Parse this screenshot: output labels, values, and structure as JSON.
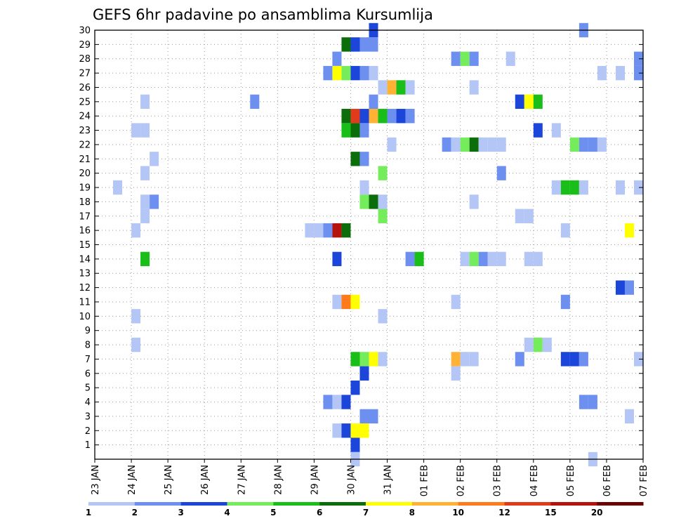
{
  "chart_data": {
    "type": "heatmap",
    "title": "GEFS 6hr padavine po ansamblima Kursumlija",
    "xlabel": "",
    "ylabel": "",
    "x_ticks": [
      "23 JAN",
      "24 JAN",
      "25 JAN",
      "26 JAN",
      "27 JAN",
      "28 JAN",
      "29 JAN",
      "30 JAN",
      "31 JAN",
      "01 FEB",
      "02 FEB",
      "03 FEB",
      "04 FEB",
      "05 FEB",
      "06 FEB",
      "07 FEB"
    ],
    "y_ticks": [
      1,
      2,
      3,
      4,
      5,
      6,
      7,
      8,
      9,
      10,
      11,
      12,
      13,
      14,
      15,
      16,
      17,
      18,
      19,
      20,
      21,
      22,
      23,
      24,
      25,
      26,
      27,
      28,
      29,
      30
    ],
    "xlim_steps": [
      0,
      60
    ],
    "ylim": [
      0,
      30
    ],
    "grid": true,
    "time_step": "6hr, x index counted in 6-hour steps from 23 JAN",
    "legend": {
      "position": "bottom",
      "bins": [
        "#b3c6f5",
        "#6c8ff0",
        "#1c46d9",
        "#74ec5c",
        "#19be19",
        "#0b6e0b",
        "#ffff00",
        "#ffb233",
        "#ff7a1a",
        "#e23b1c",
        "#b5120e",
        "#6b0000"
      ],
      "labels": [
        "1",
        "2",
        "3",
        "4",
        "5",
        "6",
        "7",
        "8",
        "10",
        "12",
        "15",
        "20"
      ]
    },
    "colors": [
      "#b3c6f5",
      "#6c8ff0",
      "#1c46d9",
      "#74ec5c",
      "#19be19",
      "#0b6e0b",
      "#ffff00",
      "#ffb233",
      "#ff7a1a",
      "#e23b1c",
      "#b5120e",
      "#6b0000"
    ],
    "cells": [
      {
        "member": 30,
        "step": 30,
        "class": 2
      },
      {
        "member": 30,
        "step": 53,
        "class": 1
      },
      {
        "member": 29,
        "step": 27,
        "class": 5
      },
      {
        "member": 29,
        "step": 28,
        "class": 2
      },
      {
        "member": 29,
        "step": 29,
        "class": 1
      },
      {
        "member": 29,
        "step": 30,
        "class": 1
      },
      {
        "member": 28,
        "step": 26,
        "class": 1
      },
      {
        "member": 28,
        "step": 39,
        "class": 1
      },
      {
        "member": 28,
        "step": 40,
        "class": 3
      },
      {
        "member": 28,
        "step": 41,
        "class": 1
      },
      {
        "member": 28,
        "step": 45,
        "class": 0
      },
      {
        "member": 28,
        "step": 59,
        "class": 1
      },
      {
        "member": 27,
        "step": 25,
        "class": 1
      },
      {
        "member": 27,
        "step": 26,
        "class": 6
      },
      {
        "member": 27,
        "step": 27,
        "class": 3
      },
      {
        "member": 27,
        "step": 28,
        "class": 2
      },
      {
        "member": 27,
        "step": 29,
        "class": 1
      },
      {
        "member": 27,
        "step": 30,
        "class": 0
      },
      {
        "member": 27,
        "step": 55,
        "class": 0
      },
      {
        "member": 27,
        "step": 57,
        "class": 0
      },
      {
        "member": 27,
        "step": 59,
        "class": 1
      },
      {
        "member": 26,
        "step": 31,
        "class": 0
      },
      {
        "member": 26,
        "step": 32,
        "class": 7
      },
      {
        "member": 26,
        "step": 33,
        "class": 4
      },
      {
        "member": 26,
        "step": 34,
        "class": 0
      },
      {
        "member": 26,
        "step": 41,
        "class": 0
      },
      {
        "member": 25,
        "step": 5,
        "class": 0
      },
      {
        "member": 25,
        "step": 17,
        "class": 1
      },
      {
        "member": 25,
        "step": 30,
        "class": 1
      },
      {
        "member": 25,
        "step": 46,
        "class": 2
      },
      {
        "member": 25,
        "step": 47,
        "class": 6
      },
      {
        "member": 25,
        "step": 48,
        "class": 4
      },
      {
        "member": 24,
        "step": 27,
        "class": 5
      },
      {
        "member": 24,
        "step": 28,
        "class": 9
      },
      {
        "member": 24,
        "step": 29,
        "class": 2
      },
      {
        "member": 24,
        "step": 30,
        "class": 7
      },
      {
        "member": 24,
        "step": 31,
        "class": 4
      },
      {
        "member": 24,
        "step": 32,
        "class": 1
      },
      {
        "member": 24,
        "step": 33,
        "class": 2
      },
      {
        "member": 24,
        "step": 34,
        "class": 1
      },
      {
        "member": 23,
        "step": 4,
        "class": 0
      },
      {
        "member": 23,
        "step": 5,
        "class": 0
      },
      {
        "member": 23,
        "step": 27,
        "class": 4
      },
      {
        "member": 23,
        "step": 28,
        "class": 5
      },
      {
        "member": 23,
        "step": 29,
        "class": 1
      },
      {
        "member": 23,
        "step": 48,
        "class": 2
      },
      {
        "member": 23,
        "step": 50,
        "class": 0
      },
      {
        "member": 22,
        "step": 32,
        "class": 0
      },
      {
        "member": 22,
        "step": 38,
        "class": 1
      },
      {
        "member": 22,
        "step": 39,
        "class": 0
      },
      {
        "member": 22,
        "step": 40,
        "class": 3
      },
      {
        "member": 22,
        "step": 41,
        "class": 5
      },
      {
        "member": 22,
        "step": 42,
        "class": 0
      },
      {
        "member": 22,
        "step": 43,
        "class": 0
      },
      {
        "member": 22,
        "step": 44,
        "class": 0
      },
      {
        "member": 22,
        "step": 52,
        "class": 3
      },
      {
        "member": 22,
        "step": 53,
        "class": 1
      },
      {
        "member": 22,
        "step": 54,
        "class": 1
      },
      {
        "member": 22,
        "step": 55,
        "class": 0
      },
      {
        "member": 21,
        "step": 6,
        "class": 0
      },
      {
        "member": 21,
        "step": 28,
        "class": 5
      },
      {
        "member": 21,
        "step": 29,
        "class": 1
      },
      {
        "member": 20,
        "step": 5,
        "class": 0
      },
      {
        "member": 20,
        "step": 31,
        "class": 3
      },
      {
        "member": 20,
        "step": 44,
        "class": 1
      },
      {
        "member": 19,
        "step": 2,
        "class": 0
      },
      {
        "member": 19,
        "step": 29,
        "class": 0
      },
      {
        "member": 19,
        "step": 50,
        "class": 0
      },
      {
        "member": 19,
        "step": 51,
        "class": 4
      },
      {
        "member": 19,
        "step": 52,
        "class": 4
      },
      {
        "member": 19,
        "step": 53,
        "class": 0
      },
      {
        "member": 19,
        "step": 57,
        "class": 0
      },
      {
        "member": 19,
        "step": 59,
        "class": 0
      },
      {
        "member": 18,
        "step": 5,
        "class": 0
      },
      {
        "member": 18,
        "step": 6,
        "class": 1
      },
      {
        "member": 18,
        "step": 29,
        "class": 3
      },
      {
        "member": 18,
        "step": 30,
        "class": 5
      },
      {
        "member": 18,
        "step": 31,
        "class": 0
      },
      {
        "member": 18,
        "step": 41,
        "class": 0
      },
      {
        "member": 17,
        "step": 5,
        "class": 0
      },
      {
        "member": 17,
        "step": 31,
        "class": 3
      },
      {
        "member": 17,
        "step": 46,
        "class": 0
      },
      {
        "member": 17,
        "step": 47,
        "class": 0
      },
      {
        "member": 16,
        "step": 4,
        "class": 0
      },
      {
        "member": 16,
        "step": 23,
        "class": 0
      },
      {
        "member": 16,
        "step": 24,
        "class": 0
      },
      {
        "member": 16,
        "step": 25,
        "class": 1
      },
      {
        "member": 16,
        "step": 26,
        "class": 10
      },
      {
        "member": 16,
        "step": 27,
        "class": 5
      },
      {
        "member": 16,
        "step": 51,
        "class": 0
      },
      {
        "member": 16,
        "step": 58,
        "class": 6
      },
      {
        "member": 14,
        "step": 5,
        "class": 4
      },
      {
        "member": 14,
        "step": 26,
        "class": 2
      },
      {
        "member": 14,
        "step": 34,
        "class": 1
      },
      {
        "member": 14,
        "step": 35,
        "class": 4
      },
      {
        "member": 14,
        "step": 40,
        "class": 0
      },
      {
        "member": 14,
        "step": 41,
        "class": 3
      },
      {
        "member": 14,
        "step": 42,
        "class": 1
      },
      {
        "member": 14,
        "step": 43,
        "class": 0
      },
      {
        "member": 14,
        "step": 44,
        "class": 0
      },
      {
        "member": 14,
        "step": 47,
        "class": 0
      },
      {
        "member": 14,
        "step": 48,
        "class": 0
      },
      {
        "member": 12,
        "step": 57,
        "class": 2
      },
      {
        "member": 12,
        "step": 58,
        "class": 1
      },
      {
        "member": 11,
        "step": 26,
        "class": 0
      },
      {
        "member": 11,
        "step": 27,
        "class": 8
      },
      {
        "member": 11,
        "step": 28,
        "class": 6
      },
      {
        "member": 11,
        "step": 39,
        "class": 0
      },
      {
        "member": 11,
        "step": 51,
        "class": 1
      },
      {
        "member": 10,
        "step": 4,
        "class": 0
      },
      {
        "member": 10,
        "step": 31,
        "class": 0
      },
      {
        "member": 8,
        "step": 4,
        "class": 0
      },
      {
        "member": 8,
        "step": 47,
        "class": 0
      },
      {
        "member": 8,
        "step": 48,
        "class": 3
      },
      {
        "member": 8,
        "step": 49,
        "class": 0
      },
      {
        "member": 7,
        "step": 28,
        "class": 4
      },
      {
        "member": 7,
        "step": 29,
        "class": 3
      },
      {
        "member": 7,
        "step": 30,
        "class": 6
      },
      {
        "member": 7,
        "step": 31,
        "class": 0
      },
      {
        "member": 7,
        "step": 39,
        "class": 7
      },
      {
        "member": 7,
        "step": 40,
        "class": 0
      },
      {
        "member": 7,
        "step": 41,
        "class": 0
      },
      {
        "member": 7,
        "step": 46,
        "class": 1
      },
      {
        "member": 7,
        "step": 51,
        "class": 2
      },
      {
        "member": 7,
        "step": 52,
        "class": 2
      },
      {
        "member": 7,
        "step": 53,
        "class": 1
      },
      {
        "member": 7,
        "step": 59,
        "class": 0
      },
      {
        "member": 6,
        "step": 29,
        "class": 2
      },
      {
        "member": 6,
        "step": 39,
        "class": 0
      },
      {
        "member": 5,
        "step": 28,
        "class": 2
      },
      {
        "member": 4,
        "step": 25,
        "class": 1
      },
      {
        "member": 4,
        "step": 26,
        "class": 0
      },
      {
        "member": 4,
        "step": 27,
        "class": 2
      },
      {
        "member": 4,
        "step": 53,
        "class": 1
      },
      {
        "member": 4,
        "step": 54,
        "class": 1
      },
      {
        "member": 3,
        "step": 29,
        "class": 1
      },
      {
        "member": 3,
        "step": 30,
        "class": 1
      },
      {
        "member": 3,
        "step": 58,
        "class": 0
      },
      {
        "member": 2,
        "step": 26,
        "class": 0
      },
      {
        "member": 2,
        "step": 27,
        "class": 2
      },
      {
        "member": 2,
        "step": 28,
        "class": 6
      },
      {
        "member": 2,
        "step": 29,
        "class": 6
      },
      {
        "member": 1,
        "step": 28,
        "class": 2
      },
      {
        "member": 0,
        "step": 28,
        "class": 0
      },
      {
        "member": 0,
        "step": 54,
        "class": 0
      }
    ]
  }
}
